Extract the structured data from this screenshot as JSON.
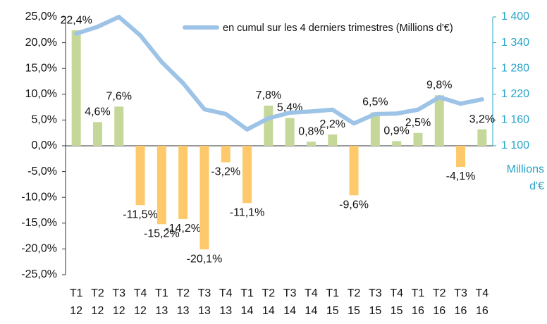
{
  "chart_data": {
    "type": "bar",
    "categories": [
      "T1 12",
      "T2 12",
      "T3 12",
      "T4 12",
      "T1 13",
      "T2 13",
      "T3 13",
      "T4 13",
      "T1 14",
      "T2 14",
      "T3 14",
      "T4 14",
      "T1 15",
      "T2 15",
      "T3 15",
      "T4 15",
      "T1 16",
      "T2 16",
      "T3 16",
      "T4 16"
    ],
    "series": [
      {
        "type": "bar",
        "color": "#c5d89a",
        "negative_color": "#fdc96a",
        "values": [
          22.4,
          4.6,
          7.6,
          -11.5,
          -15.2,
          -14.2,
          -20.1,
          -3.2,
          -11.1,
          7.8,
          5.4,
          0.8,
          2.2,
          -9.6,
          6.5,
          0.9,
          2.5,
          9.8,
          -4.1,
          3.2
        ],
        "value_labels": [
          "22,4%",
          "4,6%",
          "7,6%",
          "-11,5%",
          "-15,2%",
          "-14,2%",
          "-20,1%",
          "-3,2%",
          "-11,1%",
          "7,8%",
          "5,4%",
          "0,8%",
          "2,2%",
          "-9,6%",
          "6,5%",
          "0,9%",
          "2,5%",
          "9,8%",
          "-4,1%",
          "3,2%"
        ]
      },
      {
        "type": "line",
        "name": "en cumul sur les 4 derniers trimestres (Millions d'€)",
        "color": "#9dc3e6",
        "axis": "y2",
        "values": [
          1361,
          1377,
          1400,
          1357,
          1295,
          1246,
          1185,
          1174,
          1138,
          1164,
          1177,
          1180,
          1184,
          1152,
          1174,
          1175,
          1184,
          1213,
          1198,
          1208
        ]
      }
    ],
    "ylim": [
      -25,
      25
    ],
    "yticks": [
      {
        "value": -25,
        "label": "-25,0%"
      },
      {
        "value": -20,
        "label": "-20,0%"
      },
      {
        "value": -15,
        "label": "-15,0%"
      },
      {
        "value": -10,
        "label": "-10,0%"
      },
      {
        "value": -5,
        "label": "-5,0%"
      },
      {
        "value": 0,
        "label": "0,0%"
      },
      {
        "value": 5,
        "label": "5,0%"
      },
      {
        "value": 10,
        "label": "10,0%"
      },
      {
        "value": 15,
        "label": "15,0%"
      },
      {
        "value": 20,
        "label": "20,0%"
      },
      {
        "value": 25,
        "label": "25,0%"
      }
    ],
    "y2lim": [
      800,
      1400
    ],
    "y2ticks": [
      {
        "value": 1100,
        "label": "1 100"
      },
      {
        "value": 1160,
        "label": "1 160"
      },
      {
        "value": 1220,
        "label": "1 220"
      },
      {
        "value": 1280,
        "label": "1 280"
      },
      {
        "value": 1340,
        "label": "1 340"
      },
      {
        "value": 1400,
        "label": "1 400"
      }
    ],
    "y2label": "Millions d'€",
    "y2color": "#29a3c8",
    "legend": "top-right"
  }
}
